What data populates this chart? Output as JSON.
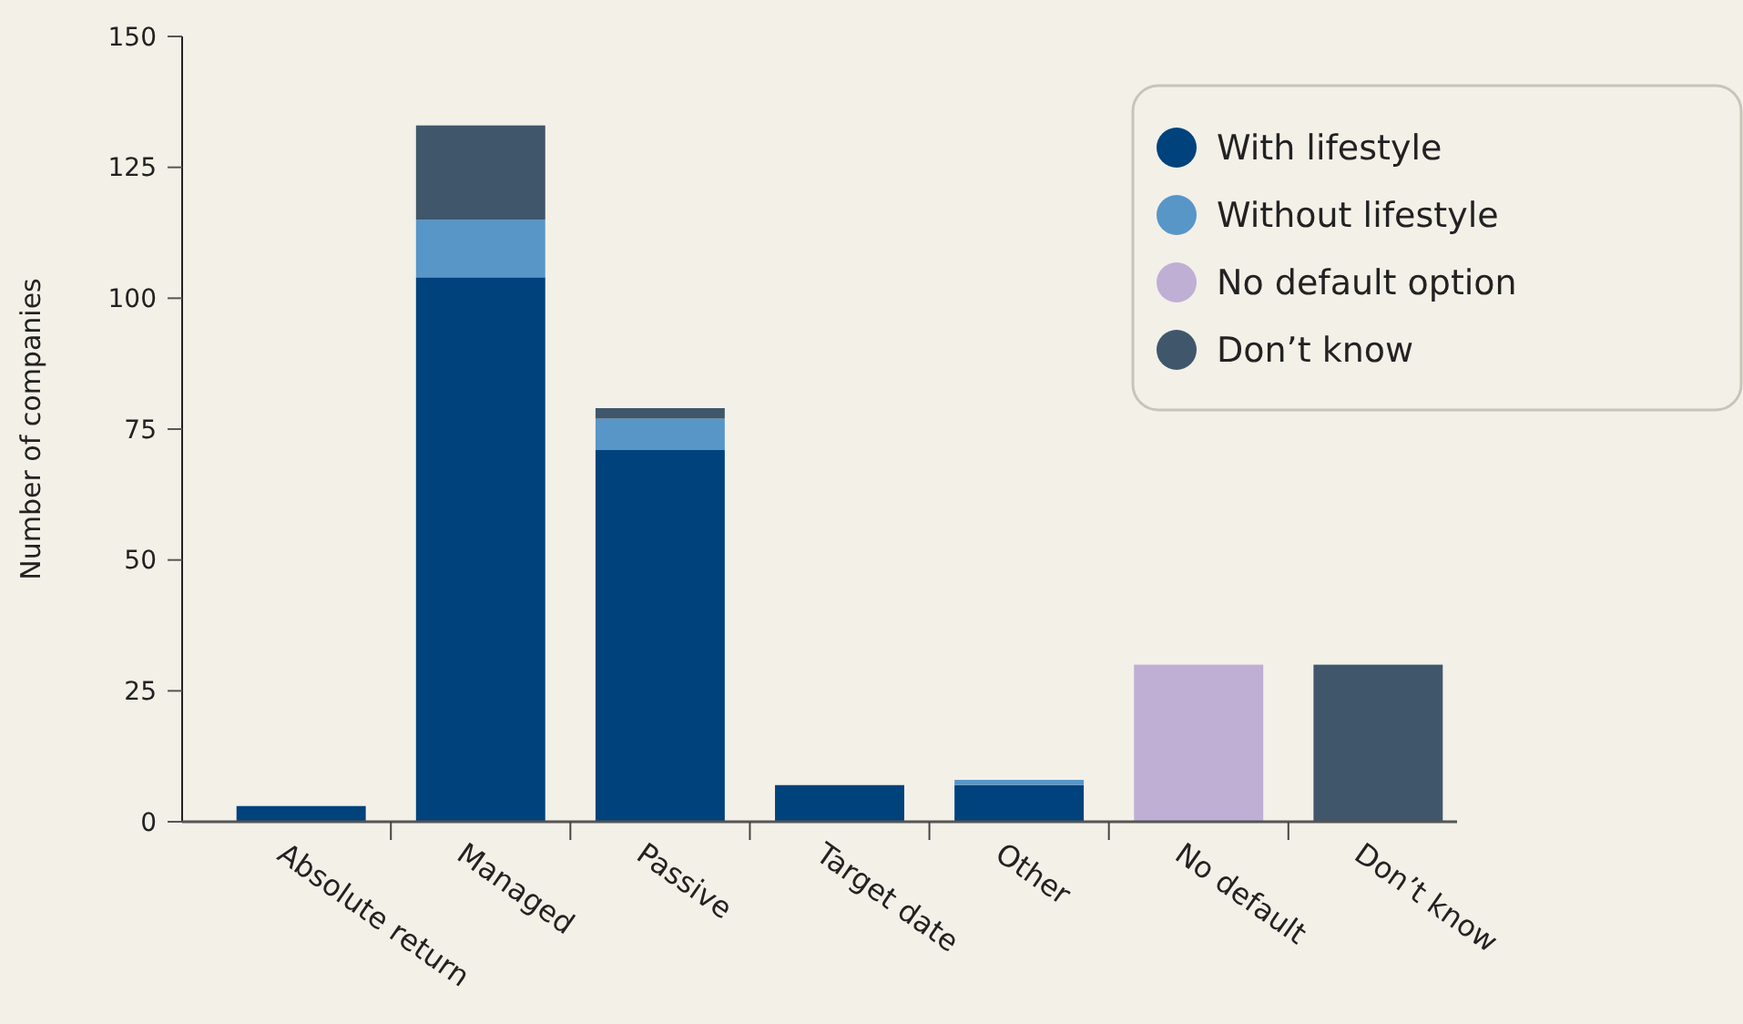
{
  "chart_data": {
    "type": "bar",
    "stacked": true,
    "ylabel": "Number of companies",
    "categories": [
      "Absolute return",
      "Managed",
      "Passive",
      "Target date",
      "Other",
      "No default",
      "Don’t know"
    ],
    "series": [
      {
        "name": "With lifestyle",
        "color": "#00427c",
        "values": [
          3,
          104,
          71,
          7,
          7,
          null,
          null
        ]
      },
      {
        "name": "Without lifestyle",
        "color": "#5896c8",
        "values": [
          null,
          11,
          6,
          null,
          1,
          null,
          null
        ]
      },
      {
        "name": "No default option",
        "color": "#c0afd4",
        "values": [
          null,
          null,
          null,
          null,
          null,
          30,
          null
        ]
      },
      {
        "name": "Don’t know",
        "color": "#40566b",
        "values": [
          null,
          18,
          2,
          null,
          null,
          null,
          30
        ]
      }
    ],
    "ylim": [
      0,
      150
    ],
    "yticks": [
      0,
      25,
      50,
      75,
      100,
      125,
      150
    ],
    "grid": false,
    "legend": "top right"
  }
}
